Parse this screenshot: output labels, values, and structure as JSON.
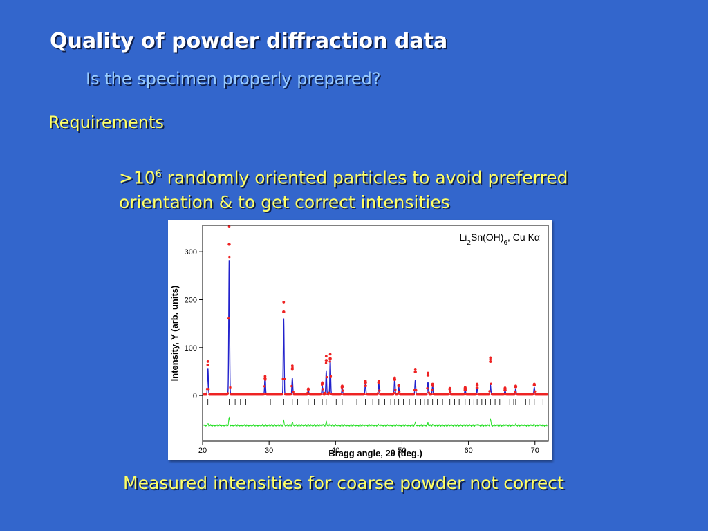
{
  "slide": {
    "title": "Quality of powder diffraction data",
    "subtitle": "Is the specimen properly prepared?",
    "requirements": "Requirements",
    "bullet_prefix": ">10",
    "bullet_sup": "6",
    "bullet_rest_1": " randomly oriented particles to avoid preferred",
    "bullet_line_2": "orientation & to get correct intensities",
    "bottom_text": "Measured intensities for coarse powder not correct"
  },
  "colors": {
    "background": "#3366cc",
    "title": "#ffffff",
    "subtitle": "#99ccff",
    "body_text": "#ffff66",
    "observed": "#ee2222",
    "calculated": "#2222cc",
    "difference": "#22dd22",
    "reflection_ticks": "#000000"
  },
  "chart_data": {
    "type": "scatter",
    "annotation": "Li2Sn(OH)6, Cu Kα",
    "xlabel": "Bragg angle, 2θ (deg.)",
    "ylabel": "Intensity, Y (arb. units)",
    "xlim": [
      20,
      72
    ],
    "ylim": [
      -95,
      355
    ],
    "xticks": [
      20,
      30,
      40,
      50,
      60,
      70
    ],
    "yticks": [
      0,
      100,
      200,
      300
    ],
    "background_level": 2,
    "observed_peaks": [
      {
        "x": 20.8,
        "y": 69
      },
      {
        "x": 24.0,
        "y": 350
      },
      {
        "x": 29.4,
        "y": 38
      },
      {
        "x": 32.2,
        "y": 193
      },
      {
        "x": 33.5,
        "y": 60
      },
      {
        "x": 35.9,
        "y": 12
      },
      {
        "x": 38.0,
        "y": 25
      },
      {
        "x": 38.6,
        "y": 80
      },
      {
        "x": 39.2,
        "y": 84
      },
      {
        "x": 41.0,
        "y": 18
      },
      {
        "x": 44.5,
        "y": 28
      },
      {
        "x": 46.5,
        "y": 28
      },
      {
        "x": 48.9,
        "y": 35
      },
      {
        "x": 49.5,
        "y": 20
      },
      {
        "x": 52.0,
        "y": 53
      },
      {
        "x": 53.9,
        "y": 45
      },
      {
        "x": 54.6,
        "y": 22
      },
      {
        "x": 57.2,
        "y": 13
      },
      {
        "x": 59.5,
        "y": 15
      },
      {
        "x": 61.3,
        "y": 22
      },
      {
        "x": 63.3,
        "y": 77
      },
      {
        "x": 65.5,
        "y": 14
      },
      {
        "x": 67.1,
        "y": 18
      },
      {
        "x": 69.9,
        "y": 22
      }
    ],
    "calculated_peaks": [
      {
        "x": 20.8,
        "y": 55
      },
      {
        "x": 24.0,
        "y": 283
      },
      {
        "x": 29.4,
        "y": 40
      },
      {
        "x": 32.2,
        "y": 160
      },
      {
        "x": 33.5,
        "y": 35
      },
      {
        "x": 35.9,
        "y": 10
      },
      {
        "x": 38.0,
        "y": 18
      },
      {
        "x": 38.6,
        "y": 50
      },
      {
        "x": 39.2,
        "y": 75
      },
      {
        "x": 41.0,
        "y": 16
      },
      {
        "x": 44.5,
        "y": 25
      },
      {
        "x": 46.5,
        "y": 24
      },
      {
        "x": 48.9,
        "y": 34
      },
      {
        "x": 49.5,
        "y": 18
      },
      {
        "x": 52.0,
        "y": 30
      },
      {
        "x": 53.9,
        "y": 26
      },
      {
        "x": 54.6,
        "y": 18
      },
      {
        "x": 57.2,
        "y": 10
      },
      {
        "x": 59.5,
        "y": 12
      },
      {
        "x": 61.3,
        "y": 14
      },
      {
        "x": 63.3,
        "y": 20
      },
      {
        "x": 65.5,
        "y": 10
      },
      {
        "x": 67.1,
        "y": 12
      },
      {
        "x": 69.9,
        "y": 15
      }
    ],
    "reflection_positions": [
      20.8,
      24.0,
      24.9,
      25.7,
      26.5,
      29.4,
      30.2,
      32.2,
      33.5,
      34.3,
      35.9,
      36.8,
      38.0,
      38.6,
      39.2,
      40.1,
      41.0,
      42.3,
      43.2,
      44.5,
      45.6,
      46.5,
      47.4,
      48.3,
      48.9,
      49.5,
      50.2,
      51.1,
      52.0,
      52.8,
      53.4,
      53.9,
      54.6,
      55.3,
      56.1,
      57.2,
      57.9,
      58.6,
      59.5,
      60.2,
      60.8,
      61.3,
      62.0,
      62.6,
      63.3,
      64.0,
      64.7,
      65.5,
      66.2,
      66.8,
      67.1,
      67.9,
      68.6,
      69.2,
      69.9,
      70.6,
      71.2
    ]
  }
}
